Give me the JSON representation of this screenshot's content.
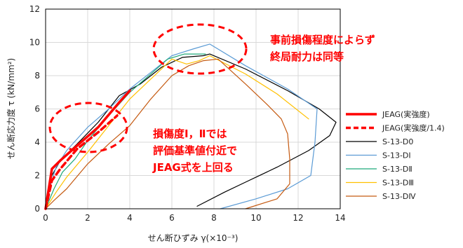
{
  "chart_data": {
    "type": "line",
    "xlabel": "せん断ひずみ γ(×10⁻³)",
    "ylabel": "せん断応力度 τ (kN/mm²)",
    "xlim": [
      0,
      14
    ],
    "ylim": [
      0,
      12
    ],
    "x_ticks": [
      "0",
      "2",
      "4",
      "6",
      "8",
      "10",
      "12",
      "14"
    ],
    "y_ticks": [
      "0",
      "2",
      "4",
      "6",
      "8",
      "10",
      "12"
    ],
    "grid": true,
    "legend_position": "right",
    "series": [
      {
        "name": "JEAG(実強度)",
        "color": "#ff0000",
        "style": "solid-thick",
        "points": [
          [
            0,
            0
          ],
          [
            0.3,
            2.4
          ],
          [
            0.7,
            2.9
          ],
          [
            1.5,
            3.8
          ],
          [
            2.5,
            4.9
          ],
          [
            3.5,
            6.4
          ],
          [
            4.0,
            7.1
          ]
        ]
      },
      {
        "name": "JEAG(実強度/1.4)",
        "color": "#ff0000",
        "style": "dashed-thick",
        "points": [
          [
            0,
            0
          ],
          [
            0.3,
            1.7
          ],
          [
            0.7,
            2.4
          ],
          [
            1.5,
            3.6
          ],
          [
            2.5,
            4.6
          ],
          [
            3.4,
            5.6
          ]
        ]
      },
      {
        "name": "S-13-D0",
        "color": "#000000",
        "style": "solid",
        "points": [
          [
            0,
            0
          ],
          [
            0.1,
            1.0
          ],
          [
            0.3,
            2.0
          ],
          [
            0.7,
            2.9
          ],
          [
            1.5,
            3.9
          ],
          [
            2.5,
            5.2
          ],
          [
            3.5,
            6.8
          ],
          [
            4.5,
            7.5
          ],
          [
            5.5,
            8.5
          ],
          [
            6.5,
            9.1
          ],
          [
            7.5,
            9.2
          ],
          [
            7.8,
            9.3
          ],
          [
            9.5,
            8.4
          ],
          [
            11.5,
            7.1
          ],
          [
            13.0,
            6.0
          ],
          [
            13.8,
            5.2
          ],
          [
            13.5,
            4.4
          ],
          [
            12.5,
            3.5
          ],
          [
            11.0,
            2.5
          ],
          [
            9.5,
            1.6
          ],
          [
            8.5,
            1.0
          ],
          [
            7.2,
            0.15
          ]
        ]
      },
      {
        "name": "S-13-DⅠ",
        "color": "#5b9bd5",
        "style": "solid",
        "points": [
          [
            0,
            0
          ],
          [
            0.2,
            1.3
          ],
          [
            0.5,
            2.5
          ],
          [
            1.0,
            3.5
          ],
          [
            2.0,
            4.9
          ],
          [
            3.0,
            6.0
          ],
          [
            4.0,
            7.2
          ],
          [
            5.0,
            8.2
          ],
          [
            6.0,
            9.2
          ],
          [
            7.0,
            9.6
          ],
          [
            7.8,
            9.9
          ],
          [
            9.5,
            8.6
          ],
          [
            11.5,
            7.2
          ],
          [
            12.9,
            6.0
          ],
          [
            12.8,
            4.0
          ],
          [
            12.6,
            2.0
          ],
          [
            11.5,
            1.2
          ],
          [
            10.0,
            0.6
          ],
          [
            8.3,
            0.0
          ]
        ]
      },
      {
        "name": "S-13-DⅡ",
        "color": "#1fa97a",
        "style": "solid",
        "points": [
          [
            0,
            0
          ],
          [
            0.4,
            1.2
          ],
          [
            0.8,
            2.2
          ],
          [
            1.4,
            3.0
          ],
          [
            2.0,
            4.1
          ],
          [
            3.0,
            5.6
          ],
          [
            4.0,
            7.0
          ],
          [
            5.0,
            8.1
          ],
          [
            5.8,
            9.0
          ],
          [
            6.6,
            9.3
          ],
          [
            7.6,
            9.3
          ]
        ]
      },
      {
        "name": "S-13-DⅢ",
        "color": "#ffc000",
        "style": "solid",
        "points": [
          [
            0,
            0
          ],
          [
            0.5,
            1.0
          ],
          [
            1.0,
            1.9
          ],
          [
            2.0,
            3.4
          ],
          [
            3.0,
            5.0
          ],
          [
            4.0,
            6.6
          ],
          [
            5.0,
            7.8
          ],
          [
            6.0,
            9.0
          ],
          [
            6.7,
            8.7
          ],
          [
            7.3,
            8.9
          ],
          [
            7.8,
            9.2
          ],
          [
            9.5,
            8.1
          ],
          [
            11.0,
            6.9
          ],
          [
            12.5,
            5.4
          ]
        ]
      },
      {
        "name": "S-13-DⅣ",
        "color": "#c55a11",
        "style": "solid",
        "points": [
          [
            0,
            0
          ],
          [
            0.4,
            0.5
          ],
          [
            1.0,
            1.2
          ],
          [
            2.0,
            2.7
          ],
          [
            3.0,
            3.9
          ],
          [
            4.0,
            5.0
          ],
          [
            5.0,
            6.6
          ],
          [
            6.0,
            8.0
          ],
          [
            6.8,
            8.6
          ],
          [
            7.5,
            8.9
          ],
          [
            8.2,
            9.0
          ],
          [
            9.5,
            7.5
          ],
          [
            10.5,
            6.3
          ],
          [
            11.2,
            5.4
          ],
          [
            11.5,
            4.5
          ],
          [
            11.6,
            3.0
          ],
          [
            11.6,
            1.5
          ],
          [
            11.0,
            0.6
          ],
          [
            9.5,
            0.0
          ]
        ]
      }
    ],
    "annotations": [
      {
        "lines": [
          "事前損傷程度によらず",
          "終局耐力は同等"
        ]
      },
      {
        "lines": [
          "損傷度Ⅰ，Ⅱでは",
          "評価基準値付近で",
          "JEAG式を上回る"
        ]
      }
    ]
  }
}
